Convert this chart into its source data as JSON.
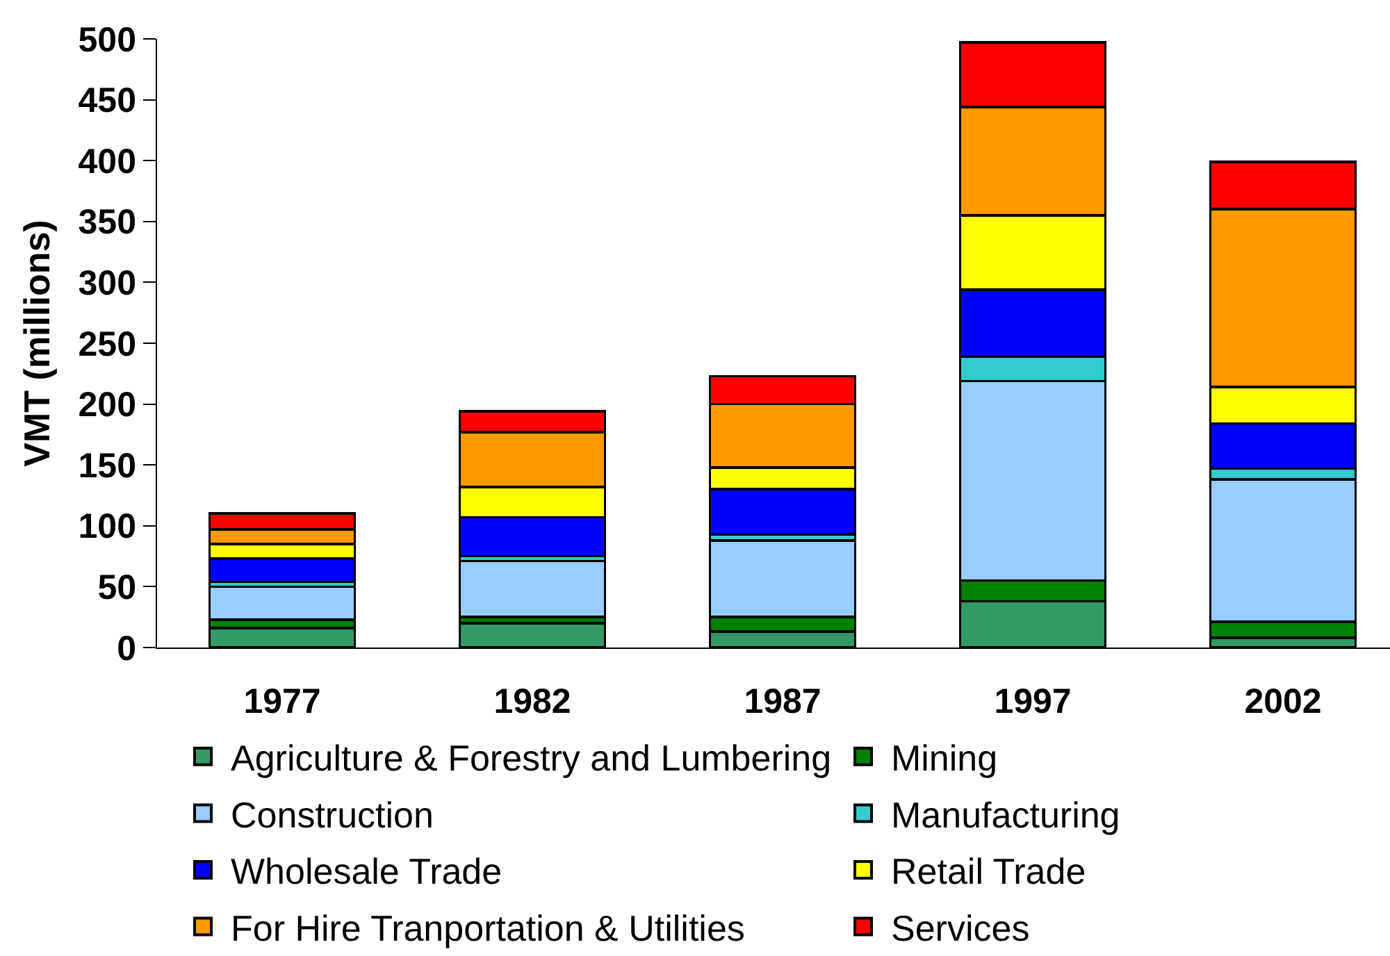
{
  "chart_data": {
    "type": "bar",
    "stacked": true,
    "ylabel": "VMT (millions)",
    "categories": [
      "1977",
      "1982",
      "1987",
      "1997",
      "2002"
    ],
    "series": [
      {
        "name": "Agriculture & Forestry and Lumbering",
        "color": "#339966",
        "values": [
          16,
          20,
          13,
          38,
          8
        ]
      },
      {
        "name": "Mining",
        "color": "#008000",
        "values": [
          7,
          5,
          12,
          17,
          13
        ]
      },
      {
        "name": "Construction",
        "color": "#99ccff",
        "values": [
          27,
          46,
          63,
          164,
          117
        ]
      },
      {
        "name": "Manufacturing",
        "color": "#33cccc",
        "values": [
          4,
          4,
          5,
          20,
          9
        ]
      },
      {
        "name": "Wholesale Trade",
        "color": "#0000ff",
        "values": [
          19,
          32,
          37,
          55,
          37
        ]
      },
      {
        "name": "Retail Trade",
        "color": "#ffff00",
        "values": [
          12,
          25,
          18,
          61,
          30
        ]
      },
      {
        "name": "For Hire Tranportation & Utilities",
        "color": "#ff9900",
        "values": [
          12,
          45,
          52,
          89,
          146
        ]
      },
      {
        "name": "Services",
        "color": "#ff0000",
        "values": [
          13,
          17,
          23,
          53,
          39
        ]
      }
    ],
    "ylim": [
      0,
      500
    ],
    "yticks": [
      0,
      50,
      100,
      150,
      200,
      250,
      300,
      350,
      400,
      450,
      500
    ],
    "legend": "bottom"
  }
}
